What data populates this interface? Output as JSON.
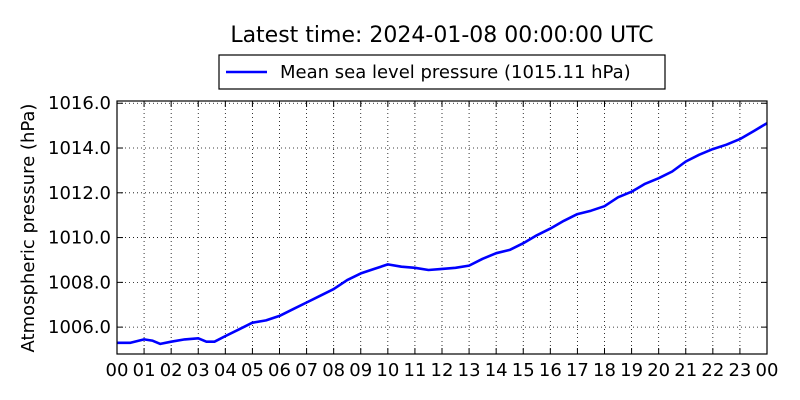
{
  "chart_data": {
    "type": "line",
    "title": "Latest time: 2024-01-08 00:00:00 UTC",
    "xlabel": "",
    "ylabel": "Atmospheric pressure (hPa)",
    "x_ticks": [
      "00",
      "01",
      "02",
      "03",
      "04",
      "05",
      "06",
      "07",
      "08",
      "09",
      "10",
      "11",
      "12",
      "13",
      "14",
      "15",
      "16",
      "17",
      "18",
      "19",
      "20",
      "21",
      "22",
      "23",
      "00"
    ],
    "x_range_hours": [
      0,
      24
    ],
    "y_ticks": [
      "1006.0",
      "1008.0",
      "1010.0",
      "1012.0",
      "1014.0",
      "1016.0"
    ],
    "ylim": [
      1004.8,
      1016.1
    ],
    "grid": true,
    "legend_position": "top-center",
    "series": [
      {
        "name": "Mean sea level pressure (1015.11 hPa)",
        "color": "#0000ff",
        "x": [
          0,
          0.5,
          1,
          1.3,
          1.6,
          2,
          2.5,
          3,
          3.3,
          3.6,
          4,
          4.5,
          5,
          5.5,
          6,
          6.5,
          7,
          7.5,
          8,
          8.5,
          9,
          9.5,
          10,
          10.5,
          11,
          11.5,
          12,
          12.5,
          13,
          13.5,
          14,
          14.5,
          15,
          15.5,
          16,
          16.5,
          17,
          17.5,
          18,
          18.5,
          19,
          19.5,
          20,
          20.5,
          21,
          21.5,
          22,
          22.5,
          23,
          23.5,
          24
        ],
        "values": [
          1005.3,
          1005.3,
          1005.45,
          1005.4,
          1005.25,
          1005.35,
          1005.45,
          1005.5,
          1005.35,
          1005.35,
          1005.6,
          1005.9,
          1006.2,
          1006.3,
          1006.5,
          1006.8,
          1007.1,
          1007.4,
          1007.7,
          1008.1,
          1008.4,
          1008.6,
          1008.8,
          1008.7,
          1008.65,
          1008.55,
          1008.6,
          1008.65,
          1008.75,
          1009.05,
          1009.3,
          1009.45,
          1009.75,
          1010.1,
          1010.4,
          1010.75,
          1011.05,
          1011.2,
          1011.4,
          1011.8,
          1012.05,
          1012.4,
          1012.65,
          1012.95,
          1013.4,
          1013.7,
          1013.95,
          1014.15,
          1014.4,
          1014.75,
          1015.11
        ]
      }
    ]
  }
}
